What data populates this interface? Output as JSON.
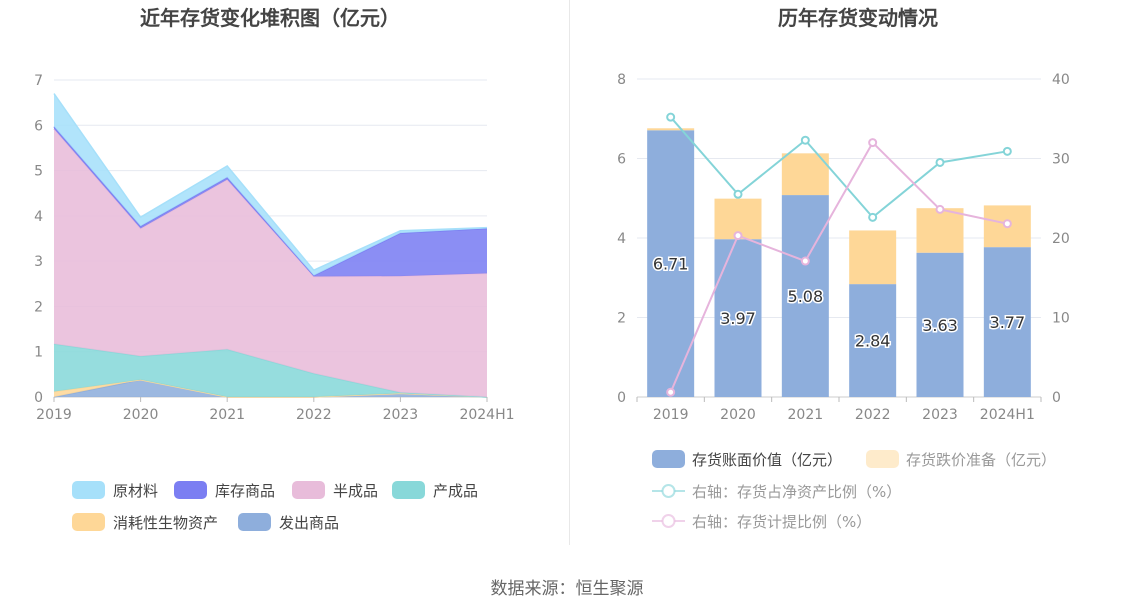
{
  "source_label": "数据来源：恒生聚源",
  "chart_data": [
    {
      "type": "area",
      "stacked": true,
      "title": "近年存货变化堆积图（亿元）",
      "categories": [
        "2019",
        "2020",
        "2021",
        "2022",
        "2023",
        "2024H1"
      ],
      "ylim": [
        0,
        7
      ],
      "yticks": [
        0,
        1,
        2,
        3,
        4,
        5,
        6,
        7
      ],
      "grid": true,
      "legend_position": "bottom",
      "series": [
        {
          "name": "发出商品",
          "color": "#8eaedc",
          "values": [
            0.0,
            0.38,
            0.0,
            0.0,
            0.08,
            0.0
          ]
        },
        {
          "name": "消耗性生物资产",
          "color": "#fed797",
          "values": [
            0.12,
            0.0,
            0.0,
            0.0,
            0.0,
            0.0
          ]
        },
        {
          "name": "产成品",
          "color": "#88d8d9",
          "values": [
            1.05,
            0.52,
            1.05,
            0.52,
            0.02,
            0.0
          ]
        },
        {
          "name": "半成品",
          "color": "#e8bcda",
          "values": [
            4.75,
            2.82,
            3.75,
            2.14,
            2.57,
            2.73
          ]
        },
        {
          "name": "库存商品",
          "color": "#7b7ef2",
          "values": [
            0.05,
            0.05,
            0.05,
            0.02,
            0.95,
            0.99
          ]
        },
        {
          "name": "原材料",
          "color": "#a6e0fa",
          "values": [
            0.73,
            0.2,
            0.25,
            0.12,
            0.05,
            0.02
          ]
        }
      ],
      "legend_order": [
        "原材料",
        "库存商品",
        "半成品",
        "产成品",
        "消耗性生物资产",
        "发出商品"
      ]
    },
    {
      "type": "bar",
      "stacked": true,
      "title": "历年存货变动情况",
      "categories": [
        "2019",
        "2020",
        "2021",
        "2022",
        "2023",
        "2024H1"
      ],
      "ylim": [
        0,
        8
      ],
      "yticks": [
        0,
        2,
        4,
        6,
        8
      ],
      "y2lim": [
        0,
        40
      ],
      "y2ticks": [
        0,
        10,
        20,
        30,
        40
      ],
      "grid": true,
      "legend_position": "bottom",
      "series": [
        {
          "name": "存货账面价值（亿元）",
          "color": "#8eaedc",
          "axis": "left",
          "kind": "bar",
          "values": [
            6.71,
            3.97,
            5.08,
            2.84,
            3.63,
            3.77
          ],
          "labels": [
            "6.71",
            "3.97",
            "5.08",
            "2.84",
            "3.63",
            "3.77"
          ]
        },
        {
          "name": "存货跌价准备（亿元）",
          "color": "#fed797",
          "axis": "left",
          "kind": "bar",
          "values": [
            0.05,
            1.02,
            1.05,
            1.35,
            1.12,
            1.05
          ]
        },
        {
          "name": "右轴：存货占净资产比例（%）",
          "color": "#84d4d8",
          "axis": "right",
          "kind": "line",
          "values": [
            35.2,
            25.5,
            32.3,
            22.6,
            29.5,
            30.9
          ]
        },
        {
          "name": "右轴：存货计提比例（%）",
          "color": "#e6b4dc",
          "axis": "right",
          "kind": "line",
          "values": [
            0.6,
            20.3,
            17.1,
            32.0,
            23.6,
            21.8
          ]
        }
      ]
    }
  ]
}
